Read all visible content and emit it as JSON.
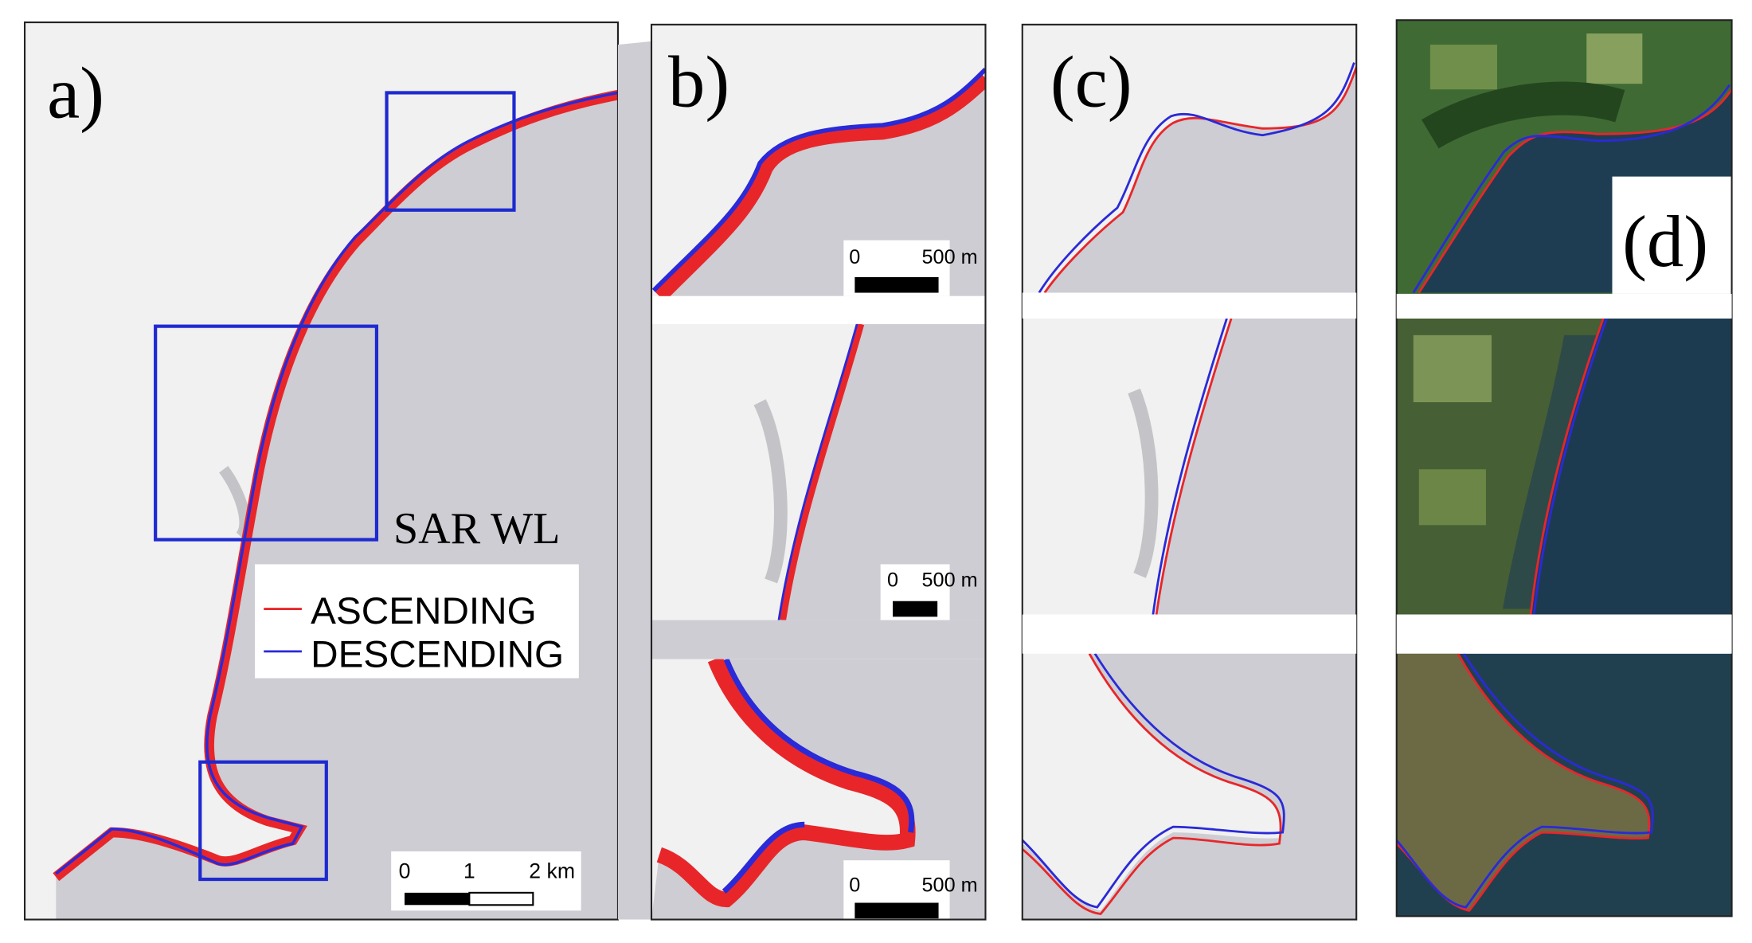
{
  "panels": {
    "a": {
      "label": "a)",
      "annotation": "SAR WL",
      "legend": [
        "ASCENDING",
        "DESCENDING"
      ],
      "scale_bar": [
        "0",
        "1",
        "2 km"
      ]
    },
    "b": {
      "label": "b)",
      "scale_bars": [
        [
          "0",
          "500 m"
        ],
        [
          "0",
          "500 m"
        ],
        [
          "0",
          "500 m"
        ]
      ]
    },
    "c": {
      "label": "(c)"
    },
    "d": {
      "label": "(d)"
    }
  }
}
